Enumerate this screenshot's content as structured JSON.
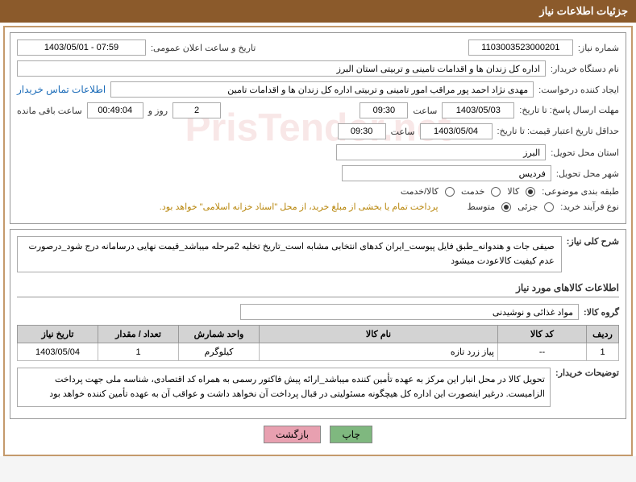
{
  "title": "جزئیات اطلاعات نیاز",
  "labels": {
    "need_number": "شماره نیاز:",
    "announce_date": "تاریخ و ساعت اعلان عمومی:",
    "buyer_org": "نام دستگاه خریدار:",
    "requester": "ایجاد کننده درخواست:",
    "contact": "اطلاعات تماس خریدار",
    "response_deadline": "مهلت ارسال پاسخ: تا تاریخ:",
    "time": "ساعت",
    "day_and": "روز و",
    "remaining": "ساعت باقی مانده",
    "price_validity": "حداقل تاریخ اعتبار قیمت: تا تاریخ:",
    "delivery_province": "استان محل تحویل:",
    "delivery_city": "شهر محل تحویل:",
    "category": "طبقه بندی موضوعی:",
    "goods": "کالا",
    "service": "خدمت",
    "goods_service": "کالا/خدمت",
    "purchase_type": "نوع فرآیند خرید:",
    "partial": "جزئی",
    "medium": "متوسط",
    "payment_note": "پرداخت تمام یا بخشی از مبلغ خرید، از محل \"اسناد خزانه اسلامی\" خواهد بود.",
    "general_desc": "شرح کلی نیاز:",
    "goods_info_header": "اطلاعات کالاهای مورد نیاز",
    "goods_group": "گروه کالا:",
    "buyer_notes_label": "توضیحات خریدار:",
    "print": "چاپ",
    "back": "بازگشت"
  },
  "values": {
    "need_number": "1103003523000201",
    "announce_date": "1403/05/01 - 07:59",
    "buyer_org": "اداره کل زندان ها و اقدامات تامینی و تربیتی استان البرز",
    "requester": "مهدی نژاد احمد پور مراقب امور تامینی و تربیتی اداره کل زندان ها و اقدامات تامین",
    "response_date": "1403/05/03",
    "response_time": "09:30",
    "days_remaining": "2",
    "time_remaining": "00:49:04",
    "price_validity_date": "1403/05/04",
    "price_validity_time": "09:30",
    "delivery_province": "البرز",
    "delivery_city": "فردیس",
    "general_desc": "صیفی جات و هندوانه_طبق فایل پیوست_ایران کدهای انتخابی مشابه است_تاریخ تخلیه 2مرحله میباشد_قیمت نهایی درسامانه درج شود_درصورت عدم کیفیت کالاعودت میشود",
    "goods_group": "مواد غذائی و نوشیدنی",
    "buyer_notes": "تحویل کالا در محل انبار این مرکز به عهده تأمین کننده میباشد_ارائه پیش فاکتور رسمی به همراه کد اقتصادی، شناسه ملی جهت پرداخت الزامیست. درغیر اینصورت این اداره کل هیچگونه مسئولیتی در قبال پرداخت آن نخواهد داشت و عواقب آن به عهده تأمین کننده خواهد بود"
  },
  "table": {
    "headers": {
      "row": "ردیف",
      "code": "کد کالا",
      "name": "نام کالا",
      "unit": "واحد شمارش",
      "qty": "تعداد / مقدار",
      "need_date": "تاریخ نیاز"
    },
    "rows": [
      {
        "row": "1",
        "code": "--",
        "name": "پیاز زرد تازه",
        "unit": "کیلوگرم",
        "qty": "1",
        "need_date": "1403/05/04"
      }
    ]
  },
  "watermark": "PrisTender.net"
}
